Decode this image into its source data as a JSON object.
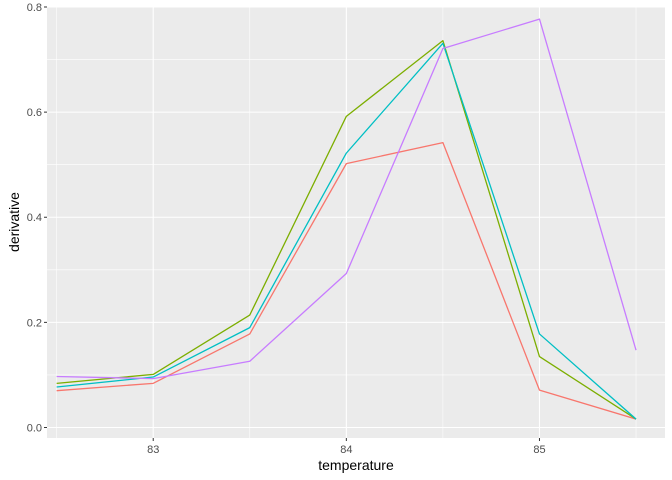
{
  "chart_data": {
    "type": "line",
    "xlabel": "temperature",
    "ylabel": "derivative",
    "xlim": [
      82.45,
      85.65
    ],
    "ylim": [
      -0.02,
      0.8
    ],
    "x_ticks": [
      83,
      84,
      85
    ],
    "y_ticks": [
      0.0,
      0.2,
      0.4,
      0.6,
      0.8
    ],
    "x_tick_labels": [
      "83",
      "84",
      "85"
    ],
    "y_tick_labels": [
      "0.0",
      "0.2",
      "0.4",
      "0.6",
      "0.8"
    ],
    "grid": true,
    "legend": "none",
    "x": [
      82.5,
      83.0,
      83.5,
      84.0,
      84.5,
      85.0,
      85.5
    ],
    "series": [
      {
        "color": "#F8766D",
        "values": [
          0.07,
          0.084,
          0.178,
          0.502,
          0.542,
          0.071,
          0.016
        ]
      },
      {
        "color": "#7CAE00",
        "values": [
          0.084,
          0.101,
          0.214,
          0.592,
          0.736,
          0.135,
          0.016
        ]
      },
      {
        "color": "#00BFC4",
        "values": [
          0.077,
          0.096,
          0.19,
          0.522,
          0.731,
          0.178,
          0.016
        ]
      },
      {
        "color": "#C77CFF",
        "values": [
          0.097,
          0.093,
          0.126,
          0.293,
          0.721,
          0.777,
          0.147
        ]
      }
    ]
  }
}
